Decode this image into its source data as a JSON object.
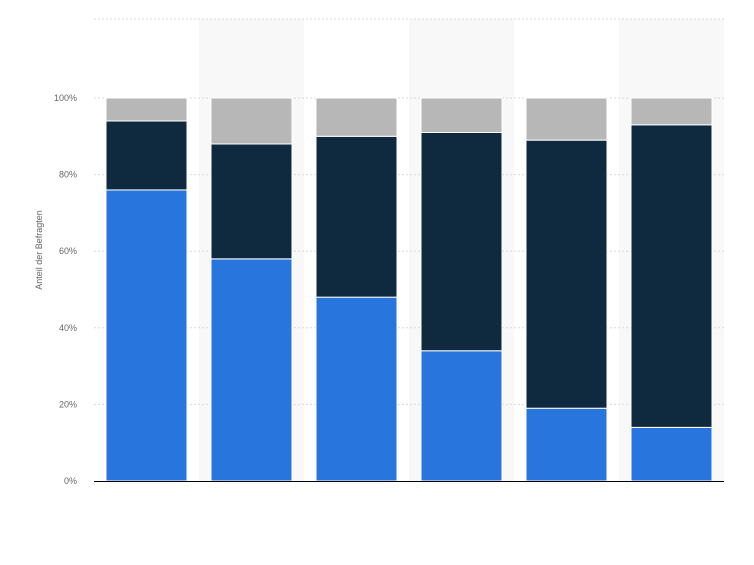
{
  "chart_data": {
    "type": "bar",
    "stacked": true,
    "title": "",
    "xlabel": "",
    "ylabel": "Anteil der Befragten",
    "ylim": [
      0,
      100
    ],
    "y_ticks": [
      0,
      20,
      40,
      60,
      80,
      100
    ],
    "y_tick_labels": [
      "0%",
      "20%",
      "40%",
      "60%",
      "80%",
      "100%"
    ],
    "grid": true,
    "legend": "none",
    "categories": [
      "",
      "",
      "",
      "",
      "",
      ""
    ],
    "series": [
      {
        "color": "#2876dd",
        "values": [
          76,
          58,
          48,
          34,
          19,
          14
        ]
      },
      {
        "color": "#0f2a3f",
        "values": [
          18,
          30,
          42,
          57,
          70,
          79
        ]
      },
      {
        "color": "#b7b7b7",
        "values": [
          6,
          12,
          10,
          9,
          11,
          7
        ]
      }
    ]
  },
  "colors": {
    "grid": "#d9d9d9",
    "axis": "#000000",
    "tick_text": "#666666",
    "band": "#f8f8f8",
    "background": "#ffffff"
  }
}
